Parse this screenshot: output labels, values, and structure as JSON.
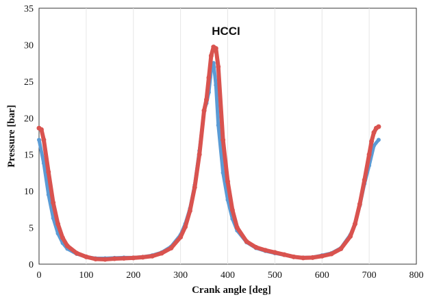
{
  "chart_data": {
    "type": "scatter",
    "title": "",
    "annotation": "HCCI",
    "xlabel": "Crank angle [deg]",
    "ylabel": "Pressure [bar]",
    "xlim": [
      0,
      800
    ],
    "ylim": [
      0,
      35
    ],
    "xticks": [
      "0",
      "100",
      "200",
      "300",
      "400",
      "500",
      "600",
      "700",
      "800"
    ],
    "yticks": [
      "0",
      "5",
      "10",
      "15",
      "20",
      "25",
      "30",
      "35"
    ],
    "grid": true,
    "legend": "none",
    "series": [
      {
        "color": "#5b9bd5",
        "x": [
          0,
          10,
          20,
          30,
          40,
          50,
          60,
          80,
          100,
          120,
          140,
          160,
          180,
          200,
          220,
          240,
          260,
          280,
          300,
          310,
          320,
          330,
          340,
          350,
          355,
          360,
          365,
          370,
          375,
          380,
          390,
          400,
          410,
          420,
          440,
          460,
          480,
          500,
          520,
          540,
          560,
          580,
          600,
          620,
          640,
          660,
          670,
          680,
          690,
          700,
          710,
          720
        ],
        "y": [
          17.0,
          13.8,
          9.5,
          6.3,
          4.2,
          2.9,
          2.1,
          1.4,
          1.0,
          0.8,
          0.8,
          0.85,
          0.9,
          0.9,
          1.0,
          1.2,
          1.6,
          2.4,
          4.0,
          5.5,
          7.6,
          10.8,
          15.5,
          21.0,
          22.0,
          23.5,
          26.5,
          27.5,
          24.5,
          19.0,
          12.5,
          8.8,
          6.2,
          4.6,
          3.0,
          2.2,
          1.8,
          1.5,
          1.25,
          1.0,
          0.9,
          0.95,
          1.2,
          1.5,
          2.2,
          4.0,
          5.5,
          8.0,
          11.0,
          13.5,
          16.2,
          17.0
        ]
      },
      {
        "color": "#d9534f",
        "x": [
          0,
          5,
          10,
          20,
          30,
          40,
          50,
          60,
          80,
          100,
          120,
          140,
          160,
          180,
          200,
          220,
          240,
          260,
          280,
          300,
          310,
          320,
          330,
          340,
          350,
          355,
          360,
          365,
          370,
          375,
          380,
          390,
          400,
          410,
          420,
          440,
          460,
          480,
          500,
          520,
          540,
          560,
          580,
          600,
          620,
          640,
          660,
          670,
          680,
          690,
          700,
          705,
          710,
          715,
          720
        ],
        "y": [
          18.6,
          18.4,
          17.0,
          12.6,
          8.4,
          5.5,
          3.6,
          2.5,
          1.5,
          1.0,
          0.7,
          0.65,
          0.75,
          0.8,
          0.85,
          0.95,
          1.1,
          1.5,
          2.2,
          3.7,
          5.1,
          7.3,
          10.5,
          15.0,
          21.0,
          22.5,
          25.5,
          28.5,
          29.7,
          29.5,
          27.0,
          17.0,
          11.3,
          7.4,
          5.0,
          3.1,
          2.3,
          1.9,
          1.6,
          1.3,
          1.0,
          0.85,
          0.9,
          1.1,
          1.4,
          2.1,
          3.8,
          5.5,
          8.2,
          11.5,
          15.0,
          16.8,
          18.0,
          18.6,
          18.8
        ]
      }
    ]
  }
}
